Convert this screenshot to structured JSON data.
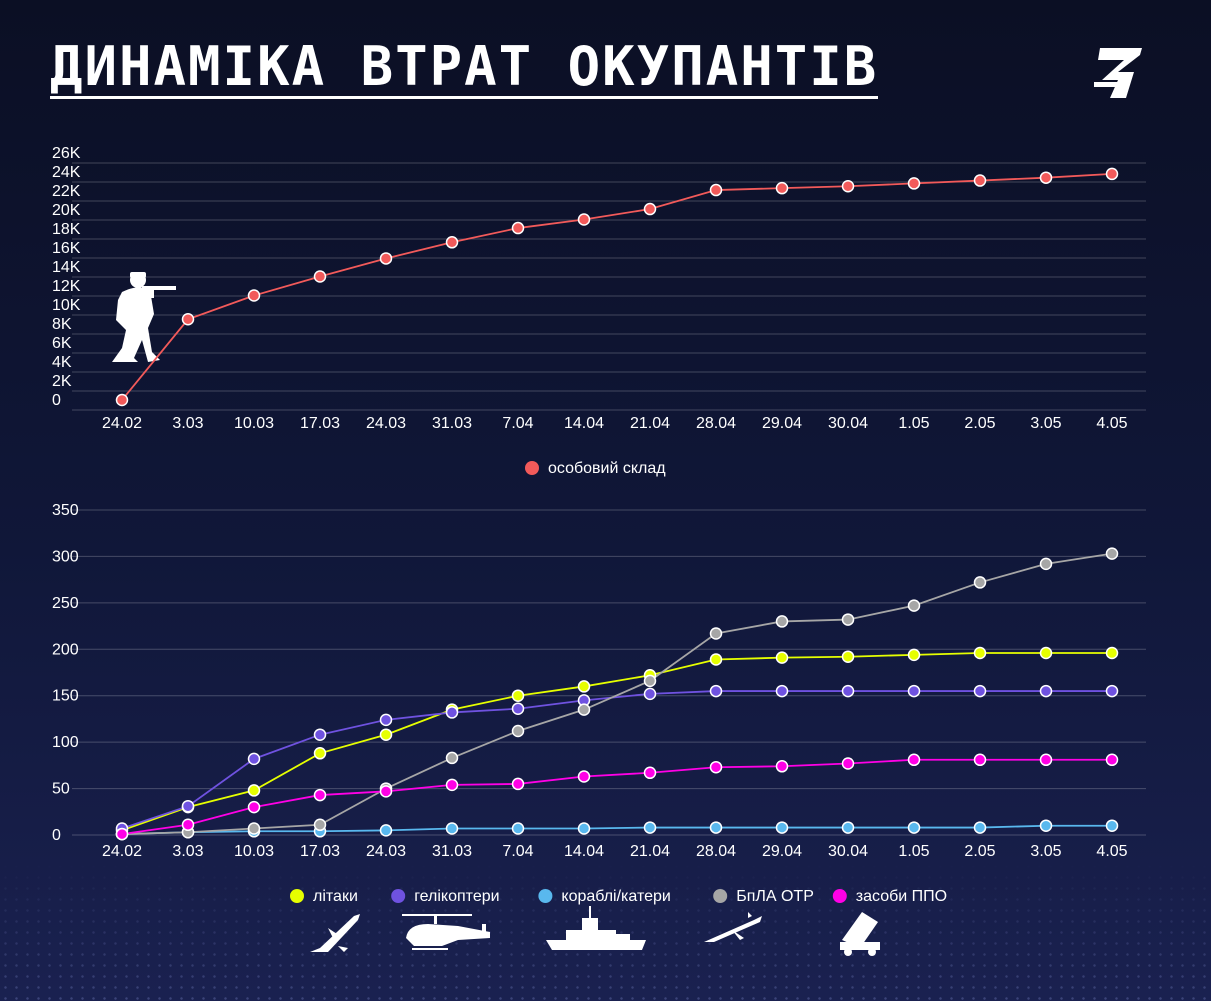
{
  "title": "ДИНАМІКА ВТРАТ ОКУПАНТІВ",
  "logo_icon": "z-strike-logo",
  "chart_data": [
    {
      "type": "line",
      "title": "",
      "xlabel": "",
      "ylabel": "",
      "ylim": [
        0,
        26000
      ],
      "y_ticks": [
        0,
        2000,
        4000,
        6000,
        8000,
        10000,
        12000,
        14000,
        16000,
        18000,
        20000,
        22000,
        24000,
        26000
      ],
      "y_tick_labels": [
        "0",
        "2K",
        "4K",
        "6K",
        "8K",
        "10K",
        "12K",
        "14K",
        "16K",
        "18K",
        "20K",
        "22K",
        "24K",
        "26K"
      ],
      "grid": true,
      "legend_position": "bottom-center",
      "categories": [
        "24.02",
        "3.03",
        "10.03",
        "17.03",
        "24.03",
        "31.03",
        "7.04",
        "14.04",
        "21.04",
        "28.04",
        "29.04",
        "30.04",
        "1.05",
        "2.05",
        "3.05",
        "4.05"
      ],
      "series": [
        {
          "name": "особовий склад",
          "color": "#f25a5a",
          "values": [
            0,
            8500,
            11000,
            13000,
            14900,
            16600,
            18100,
            19000,
            20100,
            22100,
            22300,
            22500,
            22800,
            23100,
            23400,
            23800
          ]
        }
      ],
      "icons": [
        "soldier-silhouette-icon"
      ]
    },
    {
      "type": "line",
      "title": "",
      "xlabel": "",
      "ylabel": "",
      "ylim": [
        0,
        350
      ],
      "y_ticks": [
        0,
        50,
        100,
        150,
        200,
        250,
        300,
        350
      ],
      "y_tick_labels": [
        "0",
        "50",
        "100",
        "150",
        "200",
        "250",
        "300",
        "350"
      ],
      "grid": true,
      "legend_position": "bottom-center",
      "categories": [
        "24.02",
        "3.03",
        "10.03",
        "17.03",
        "24.03",
        "31.03",
        "7.04",
        "14.04",
        "21.04",
        "28.04",
        "29.04",
        "30.04",
        "1.05",
        "2.05",
        "3.05",
        "4.05"
      ],
      "series": [
        {
          "name": "літаки",
          "color": "#e6ff00",
          "values": [
            5,
            30,
            48,
            88,
            108,
            135,
            150,
            160,
            172,
            189,
            191,
            192,
            194,
            196,
            196,
            196
          ]
        },
        {
          "name": "гелікоптери",
          "color": "#6f52e0",
          "values": [
            7,
            31,
            82,
            108,
            124,
            132,
            136,
            145,
            152,
            155,
            155,
            155,
            155,
            155,
            155,
            155
          ]
        },
        {
          "name": "кораблі/катери",
          "color": "#59b8ee",
          "values": [
            1,
            3,
            4,
            4,
            5,
            7,
            7,
            7,
            8,
            8,
            8,
            8,
            8,
            8,
            10,
            10
          ]
        },
        {
          "name": "БпЛА ОТР",
          "color": "#a6a6a6",
          "values": [
            1,
            3,
            7,
            11,
            50,
            83,
            112,
            135,
            166,
            217,
            230,
            232,
            247,
            272,
            292,
            303
          ]
        },
        {
          "name": "засоби ППО",
          "color": "#ff00e6",
          "values": [
            1,
            11,
            30,
            43,
            47,
            54,
            55,
            63,
            67,
            73,
            74,
            77,
            81,
            81,
            81,
            81
          ]
        }
      ],
      "icons": [
        "plane-silhouette-icon",
        "helicopter-silhouette-icon",
        "warship-silhouette-icon",
        "drone-silhouette-icon",
        "missile-launcher-silhouette-icon"
      ]
    }
  ]
}
